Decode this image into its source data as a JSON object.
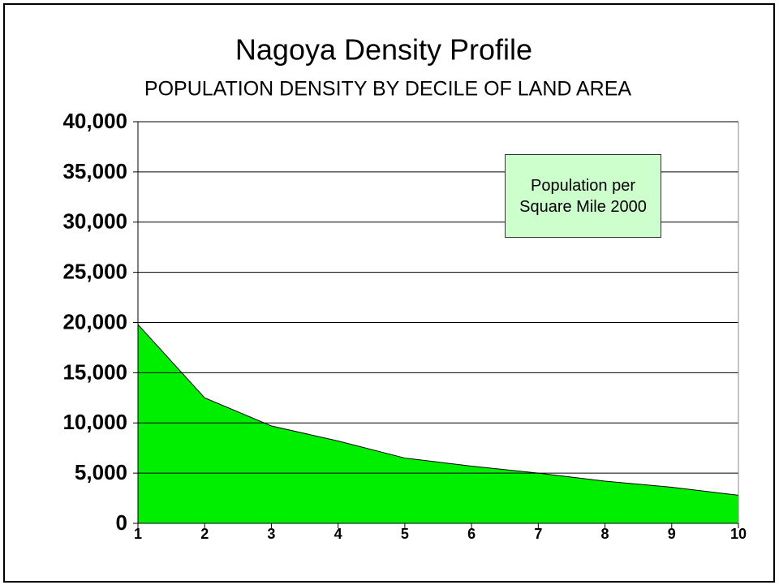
{
  "chart_data": {
    "type": "area",
    "title": "Nagoya Density Profile",
    "subtitle": "POPULATION DENSITY BY DECILE OF LAND AREA",
    "categories": [
      "1",
      "2",
      "3",
      "4",
      "5",
      "6",
      "7",
      "8",
      "9",
      "10"
    ],
    "series": [
      {
        "name": "Population per Square Mile 2000",
        "color": "#00ee00",
        "values": [
          19800,
          12500,
          9700,
          8200,
          6500,
          5700,
          5000,
          4200,
          3600,
          2800
        ]
      }
    ],
    "ylim": [
      0,
      40000
    ],
    "yticks": [
      0,
      {
        "value": 5000,
        "label": "5,000"
      },
      {
        "value": 10000,
        "label": "10,000"
      },
      {
        "value": 15000,
        "label": "15,000"
      },
      {
        "value": 20000,
        "label": "20,000"
      },
      {
        "value": 25000,
        "label": "25,000"
      },
      {
        "value": 30000,
        "label": "30,000"
      },
      {
        "value": 35000,
        "label": "35,000"
      },
      {
        "value": 40000,
        "label": "40,000"
      }
    ],
    "grid": true,
    "legend_box_color": "#ccffcc"
  }
}
